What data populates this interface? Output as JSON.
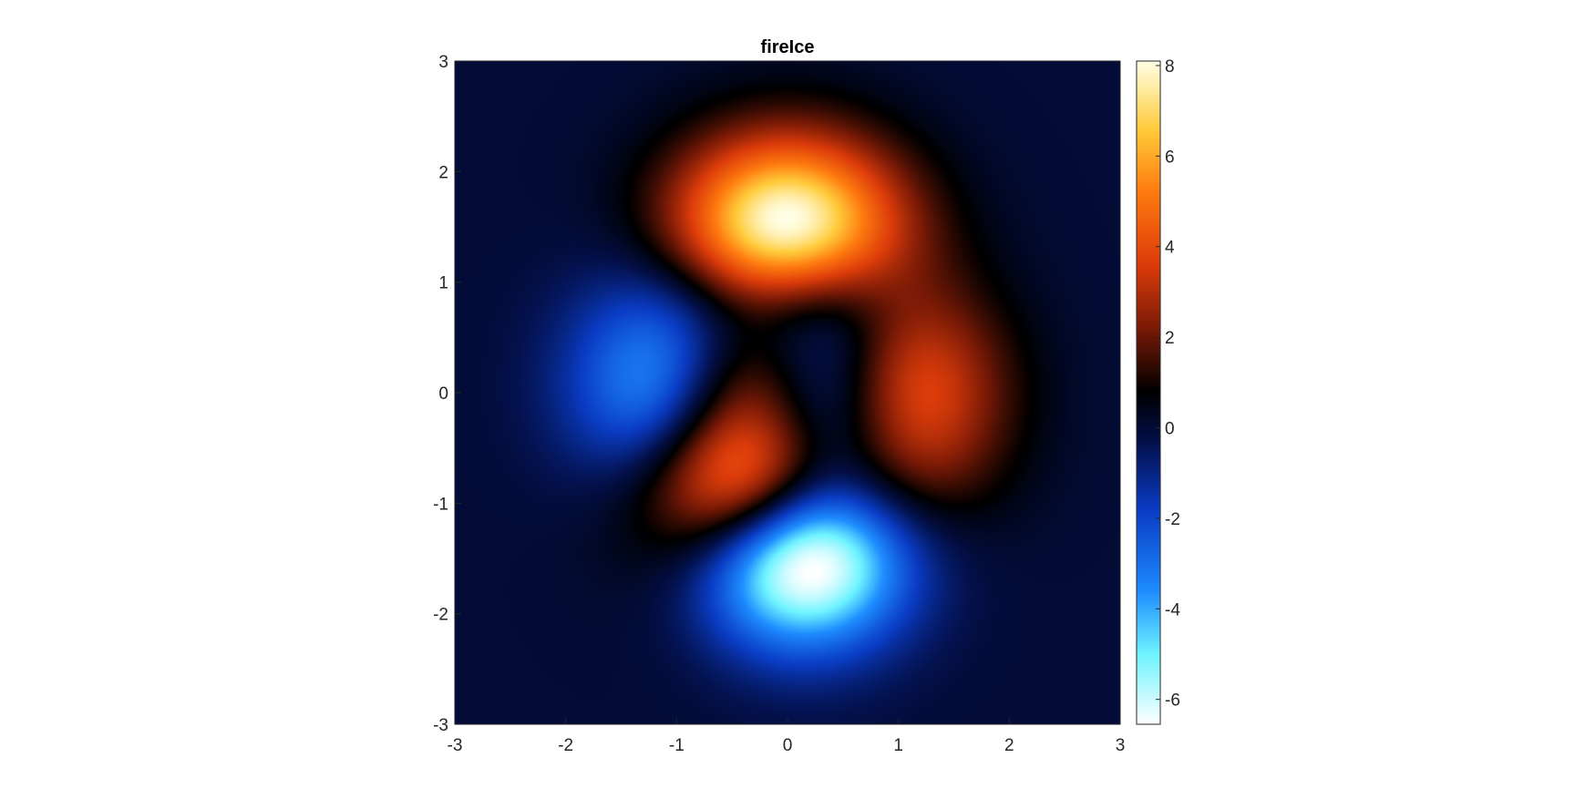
{
  "chart_data": {
    "type": "heatmap",
    "title": "fireIce",
    "function": "peaks",
    "xlim": [
      -3,
      3
    ],
    "ylim": [
      -3,
      3
    ],
    "x_ticks": [
      -3,
      -2,
      -1,
      0,
      1,
      2,
      3
    ],
    "y_ticks": [
      -3,
      -2,
      -1,
      0,
      1,
      2,
      3
    ],
    "x_tick_labels": [
      "-3",
      "-2",
      "-1",
      "0",
      "1",
      "2",
      "3"
    ],
    "y_tick_labels": [
      "-3",
      "-2",
      "-1",
      "0",
      "1",
      "2",
      "3"
    ],
    "colorbar": {
      "colormap": "fireIce",
      "limits": [
        -6.55,
        8.1
      ],
      "ticks": [
        -6,
        -4,
        -2,
        0,
        2,
        4,
        6,
        8
      ],
      "tick_labels": [
        "-6",
        "-4",
        "-2",
        "0",
        "2",
        "4",
        "6",
        "8"
      ],
      "colormap_stops": [
        {
          "value": -6.55,
          "color": "#ffffff"
        },
        {
          "value": -5.0,
          "color": "#6ff4ff"
        },
        {
          "value": -3.6,
          "color": "#1e8cff"
        },
        {
          "value": -1.8,
          "color": "#0a3cc4"
        },
        {
          "value": -0.3,
          "color": "#03104a"
        },
        {
          "value": 0.8,
          "color": "#000000"
        },
        {
          "value": 2.2,
          "color": "#7a1a06"
        },
        {
          "value": 3.6,
          "color": "#dc3c0a"
        },
        {
          "value": 5.2,
          "color": "#ff7a0f"
        },
        {
          "value": 6.6,
          "color": "#ffcc3c"
        },
        {
          "value": 8.1,
          "color": "#ffffe6"
        }
      ]
    },
    "grid": false,
    "legend": "none"
  }
}
